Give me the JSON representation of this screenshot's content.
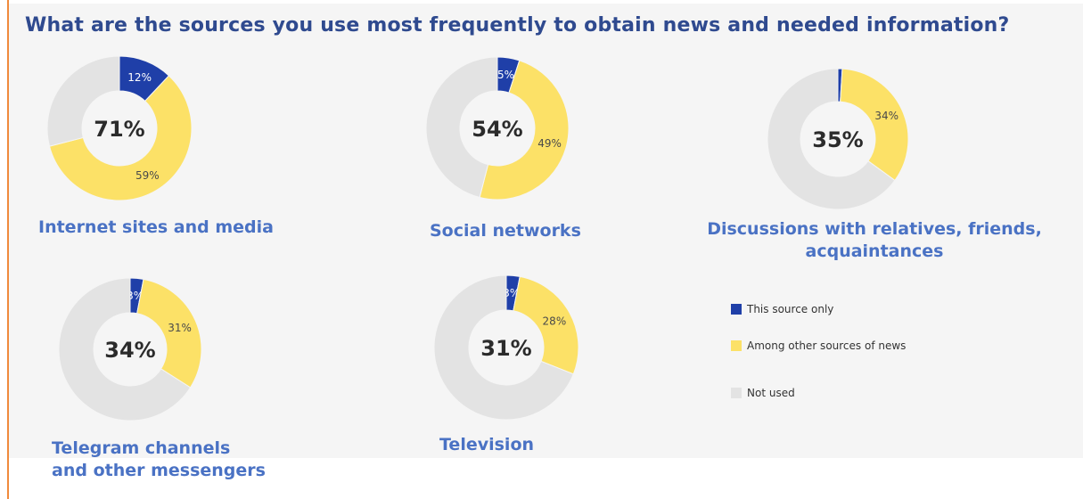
{
  "title": "What are the sources you use most frequently to obtain news and needed information?",
  "colors": {
    "this_source_only": "#1f3fa8",
    "among_other_sources": "#fce167",
    "not_used": "#e3e3e3",
    "title": "#2f4a8f",
    "caption": "#4a72c4"
  },
  "legend": [
    {
      "key": "this_source_only",
      "label": "This source only"
    },
    {
      "key": "among_other_sources",
      "label": "Among other sources of news"
    },
    {
      "key": "not_used",
      "label": "Not used"
    }
  ],
  "chart_data": [
    {
      "type": "pie",
      "title": "Internet sites and media",
      "total_label": "71%",
      "categories": [
        "This source only",
        "Among other sources of news",
        "Not used"
      ],
      "values": [
        12,
        59,
        29
      ],
      "data_labels": [
        "12%",
        "59%",
        ""
      ]
    },
    {
      "type": "pie",
      "title": "Social networks",
      "total_label": "54%",
      "categories": [
        "This source only",
        "Among other sources of news",
        "Not used"
      ],
      "values": [
        5,
        49,
        46
      ],
      "data_labels": [
        "5%",
        "49%",
        ""
      ]
    },
    {
      "type": "pie",
      "title": "Discussions with relatives, friends, acquaintances",
      "total_label": "35%",
      "categories": [
        "This source only",
        "Among other sources of news",
        "Not used"
      ],
      "values": [
        1,
        34,
        65
      ],
      "data_labels": [
        "",
        "34%",
        ""
      ]
    },
    {
      "type": "pie",
      "title": "Telegram channels and other messengers",
      "total_label": "34%",
      "categories": [
        "This source only",
        "Among other sources of news",
        "Not used"
      ],
      "values": [
        3,
        31,
        66
      ],
      "data_labels": [
        "3%",
        "31%",
        ""
      ]
    },
    {
      "type": "pie",
      "title": "Television",
      "total_label": "31%",
      "categories": [
        "This source only",
        "Among other sources of news",
        "Not used"
      ],
      "values": [
        3,
        28,
        69
      ],
      "data_labels": [
        "3%",
        "28%",
        ""
      ]
    }
  ],
  "captions": [
    {
      "lines": [
        "Internet sites and media"
      ]
    },
    {
      "lines": [
        "Social networks"
      ]
    },
    {
      "lines": [
        "Discussions with relatives, friends,",
        "acquaintances"
      ]
    },
    {
      "lines": [
        "Telegram channels",
        "and other messengers"
      ]
    },
    {
      "lines": [
        "Television"
      ]
    }
  ]
}
